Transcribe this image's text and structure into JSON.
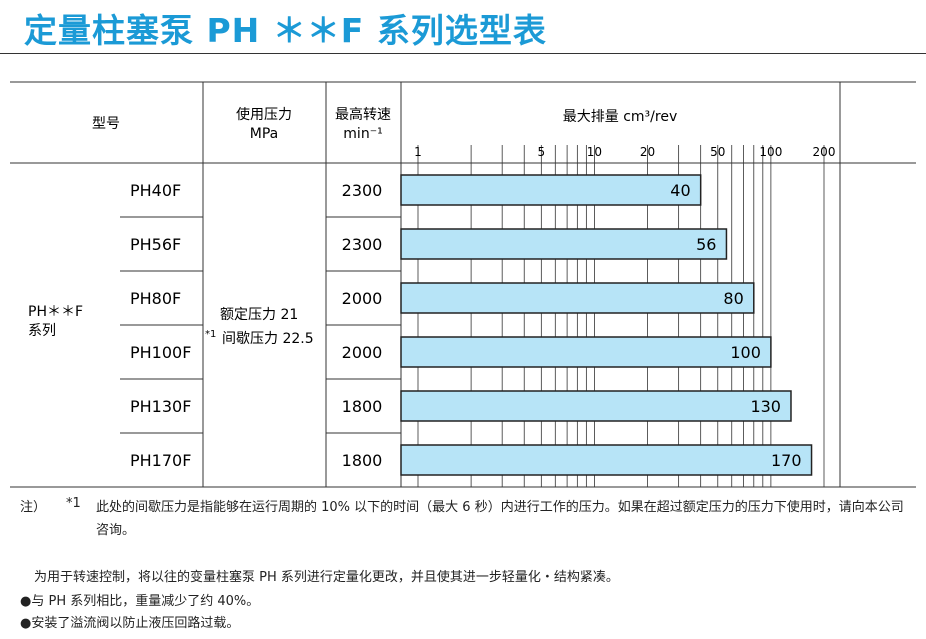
{
  "title": "定量柱塞泵 PH ＊＊F 系列选型表",
  "headers": {
    "model": "型号",
    "pressure_line1": "使用压力",
    "pressure_line2": "MPa",
    "speed_line1": "最高转速",
    "speed_line2": "min⁻¹",
    "displacement": "最大排量 cm³/rev"
  },
  "series_label_line1": "PH＊＊F",
  "series_label_line2": "系列",
  "pressure": {
    "ref": "*1",
    "rated": "额定压力 21",
    "intermittent": "间歇压力 22.5"
  },
  "chart_data": {
    "type": "bar",
    "orientation": "horizontal",
    "x_scale": "log",
    "xlim": [
      1,
      200
    ],
    "xlabel": "最大排量 cm³/rev",
    "x_ticks": [
      "1",
      "5",
      "10",
      "20",
      "50",
      "100",
      "200"
    ],
    "categories": [
      "PH40F",
      "PH56F",
      "PH80F",
      "PH100F",
      "PH130F",
      "PH170F"
    ],
    "max_speed": [
      "2300",
      "2300",
      "2000",
      "2000",
      "1800",
      "1800"
    ],
    "values": [
      40,
      56,
      80,
      100,
      130,
      170
    ],
    "bar_color": "#b7e4f7"
  },
  "notes": {
    "tag": "注）",
    "ref": "*1",
    "text": "此处的间歇压力是指能够在运行周期的 10% 以下的时间（最大 6 秒）内进行工作的压力。如果在超过额定压力的压力下使用时，请向本公司咨询。",
    "intro": "为用于转速控制，将以往的变量柱塞泵 PH 系列进行定量化更改，并且使其进一步轻量化・结构紧凑。",
    "bullets": [
      "●与 PH 系列相比，重量减少了约 40%。",
      "●安装了溢流阀以防止液压回路过载。"
    ]
  }
}
